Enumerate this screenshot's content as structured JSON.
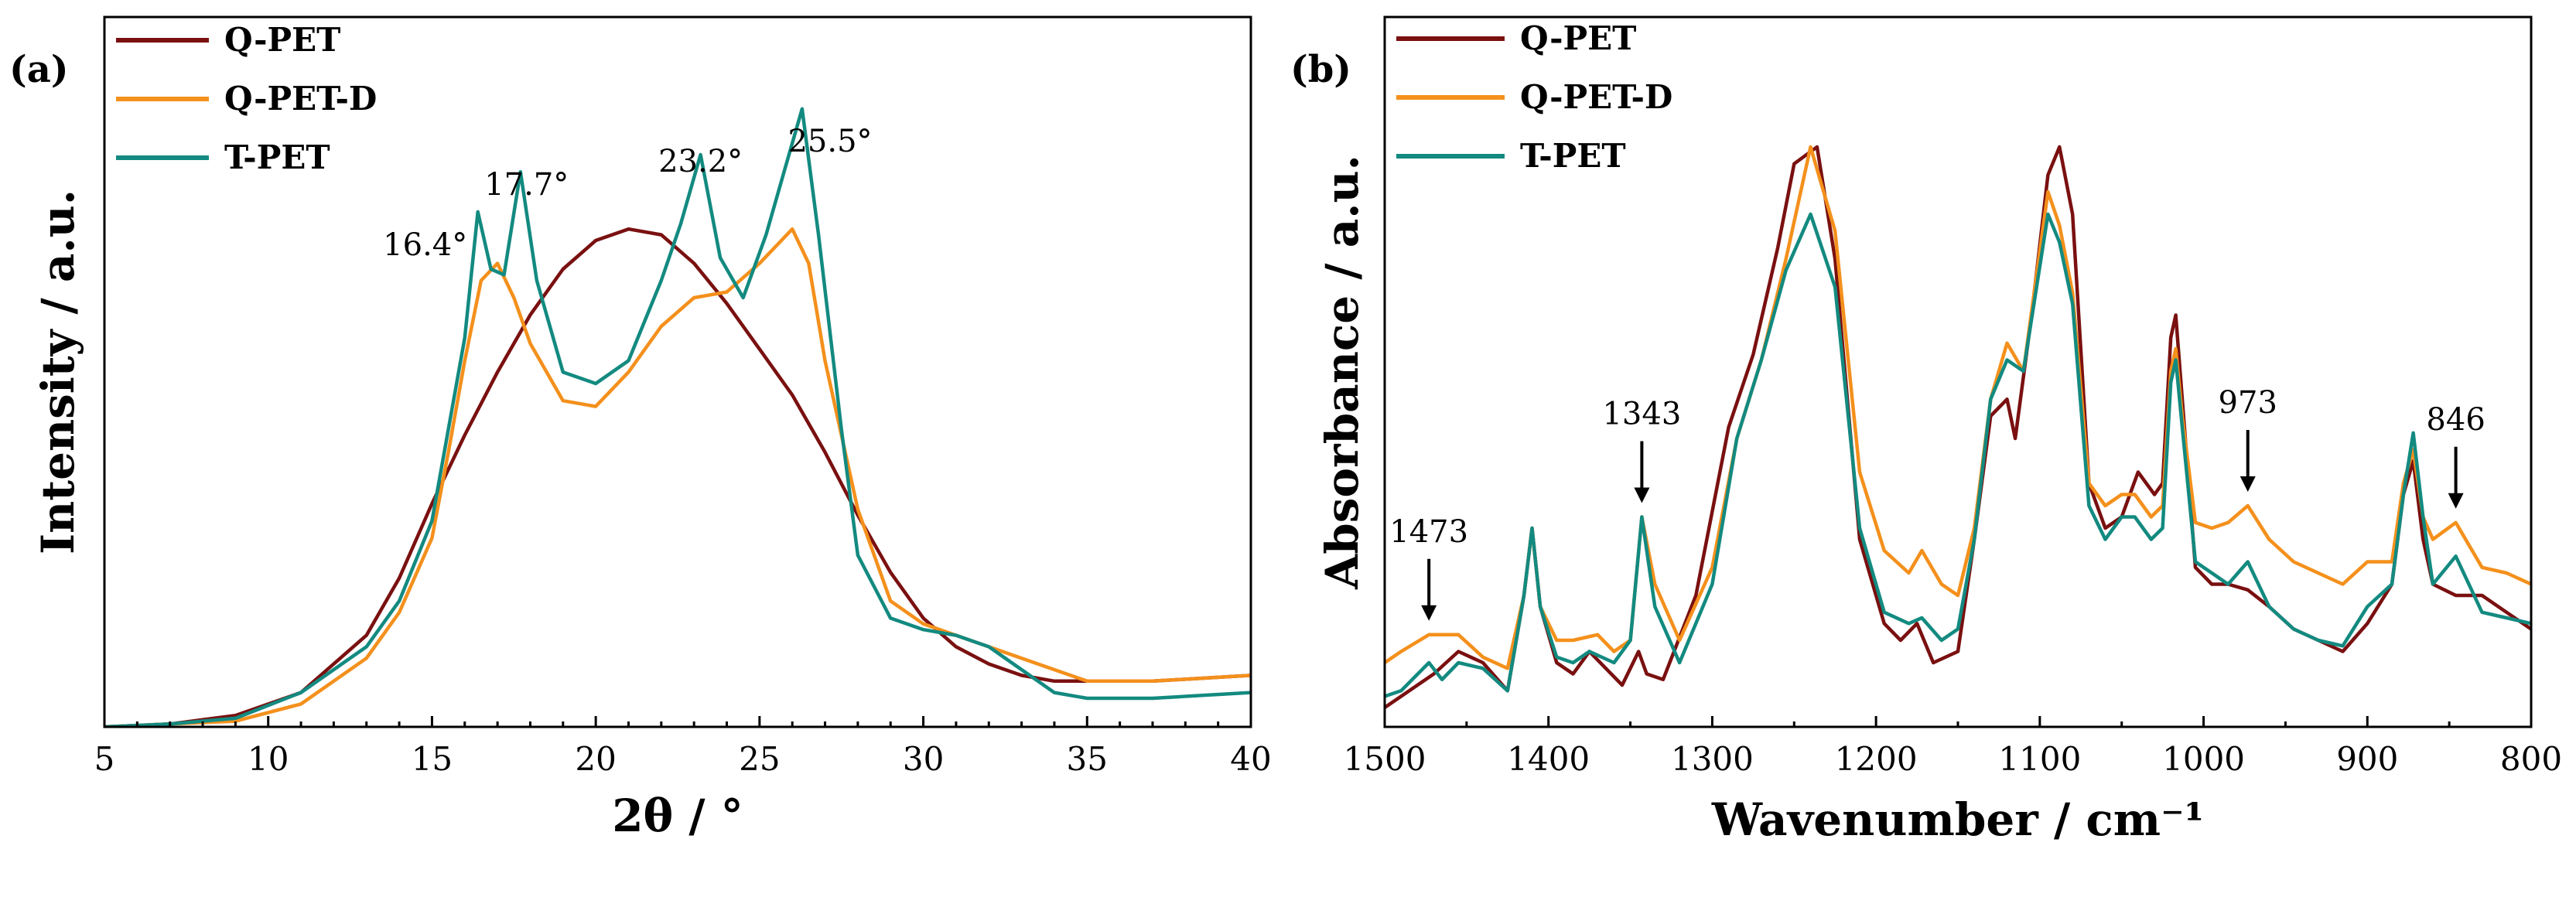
{
  "colors": {
    "Q-PET": "#7a1010",
    "Q-PET-D": "#f4901c",
    "T-PET": "#138a80"
  },
  "chart_data": [
    {
      "panel": "(a)",
      "type": "line",
      "xlabel": "2θ / °",
      "ylabel": "Intensity / a.u.",
      "xlim": [
        5,
        40
      ],
      "ylim": [
        0,
        100
      ],
      "xticks": [
        5,
        10,
        15,
        20,
        25,
        30,
        35,
        40
      ],
      "x_reversed": false,
      "legend": [
        "Q-PET",
        "Q-PET-D",
        "T-PET"
      ],
      "legend_position": "top-left",
      "series": [
        {
          "name": "Q-PET",
          "x": [
            5,
            7,
            9,
            11,
            13,
            14,
            15,
            16,
            17,
            18,
            19,
            20,
            21,
            22,
            23,
            24,
            25,
            26,
            27,
            28,
            29,
            30,
            31,
            32,
            33,
            34,
            35,
            37,
            40
          ],
          "y": [
            0,
            0.5,
            2,
            6,
            16,
            26,
            39,
            51,
            62,
            72,
            80,
            85,
            87,
            86,
            81,
            74,
            66,
            58,
            48,
            37,
            27,
            19,
            14,
            11,
            9,
            8,
            8,
            8,
            9
          ]
        },
        {
          "name": "Q-PET-D",
          "x": [
            5,
            7,
            9,
            11,
            13,
            14,
            15,
            15.5,
            16,
            16.5,
            17,
            17.5,
            18,
            19,
            20,
            21,
            22,
            23,
            24,
            25,
            26,
            26.5,
            27,
            28,
            29,
            30,
            31,
            32,
            33,
            34,
            35,
            37,
            40
          ],
          "y": [
            0,
            0.5,
            1,
            4,
            12,
            20,
            33,
            48,
            64,
            78,
            81,
            75,
            67,
            57,
            56,
            62,
            70,
            75,
            76,
            81,
            87,
            81,
            64,
            38,
            22,
            18,
            16,
            14,
            12,
            10,
            8,
            8,
            9
          ]
        },
        {
          "name": "T-PET",
          "x": [
            5,
            7,
            9,
            11,
            13,
            14,
            15,
            15.5,
            16,
            16.4,
            16.8,
            17.2,
            17.7,
            18.2,
            19,
            20,
            21,
            22,
            22.6,
            23.2,
            23.8,
            24.5,
            25.2,
            25.8,
            26.3,
            26.8,
            27.5,
            28,
            29,
            30,
            31,
            32,
            33,
            34,
            35,
            37,
            40
          ],
          "y": [
            0,
            0.5,
            1.5,
            6,
            14,
            22,
            36,
            52,
            68,
            90,
            80,
            79,
            97,
            78,
            62,
            60,
            64,
            78,
            88,
            100,
            82,
            75,
            86,
            98,
            108,
            86,
            52,
            30,
            19,
            17,
            16,
            14,
            10,
            6,
            5,
            5,
            6
          ]
        }
      ],
      "annotations": [
        {
          "text": "16.4°",
          "x": 16.4
        },
        {
          "text": "17.7°",
          "x": 17.7
        },
        {
          "text": "23.2°",
          "x": 23.2
        },
        {
          "text": "25.5°",
          "x": 25.5
        }
      ]
    },
    {
      "panel": "(b)",
      "type": "line",
      "xlabel": "Wavenumber / cm⁻¹",
      "ylabel": "Absorbance / a.u.",
      "xlim": [
        1500,
        800
      ],
      "ylim": [
        0,
        100
      ],
      "xticks": [
        1500,
        1400,
        1300,
        1200,
        1100,
        1000,
        900,
        800
      ],
      "x_reversed": true,
      "legend": [
        "Q-PET",
        "Q-PET-D",
        "T-PET"
      ],
      "legend_position": "top-left",
      "series": [
        {
          "name": "Q-PET",
          "x": [
            1500,
            1490,
            1470,
            1455,
            1440,
            1425,
            1415,
            1410,
            1405,
            1395,
            1385,
            1375,
            1365,
            1355,
            1345,
            1340,
            1330,
            1310,
            1290,
            1275,
            1260,
            1250,
            1236,
            1225,
            1210,
            1195,
            1185,
            1175,
            1165,
            1150,
            1140,
            1130,
            1120,
            1115,
            1105,
            1095,
            1088,
            1080,
            1070,
            1060,
            1050,
            1040,
            1030,
            1025,
            1020,
            1017,
            1013,
            1005,
            995,
            985,
            973,
            960,
            945,
            930,
            915,
            900,
            885,
            878,
            872,
            866,
            860,
            846,
            830,
            815,
            800
          ],
          "y": [
            0,
            2,
            6,
            10,
            8,
            3,
            20,
            32,
            18,
            8,
            6,
            10,
            7,
            4,
            10,
            6,
            5,
            20,
            50,
            63,
            82,
            97,
            100,
            80,
            30,
            15,
            12,
            15,
            8,
            10,
            30,
            52,
            55,
            48,
            70,
            95,
            100,
            88,
            40,
            32,
            34,
            42,
            38,
            40,
            66,
            70,
            55,
            25,
            22,
            22,
            21,
            18,
            14,
            12,
            10,
            15,
            22,
            38,
            44,
            30,
            22,
            20,
            20,
            17,
            14
          ]
        },
        {
          "name": "Q-PET-D",
          "x": [
            1500,
            1490,
            1473,
            1455,
            1440,
            1425,
            1415,
            1410,
            1405,
            1395,
            1385,
            1370,
            1360,
            1350,
            1343,
            1335,
            1320,
            1300,
            1285,
            1270,
            1255,
            1240,
            1225,
            1210,
            1195,
            1180,
            1172,
            1160,
            1150,
            1140,
            1130,
            1120,
            1110,
            1095,
            1088,
            1080,
            1070,
            1060,
            1050,
            1042,
            1032,
            1025,
            1020,
            1017,
            1013,
            1005,
            995,
            985,
            973,
            960,
            945,
            930,
            915,
            900,
            885,
            878,
            872,
            866,
            860,
            846,
            830,
            815,
            800
          ],
          "y": [
            8,
            10,
            13,
            13,
            9,
            7,
            20,
            32,
            18,
            12,
            12,
            13,
            10,
            12,
            34,
            22,
            12,
            25,
            48,
            62,
            80,
            100,
            85,
            42,
            28,
            24,
            28,
            22,
            20,
            32,
            55,
            65,
            60,
            92,
            86,
            74,
            40,
            36,
            38,
            38,
            34,
            36,
            60,
            64,
            52,
            33,
            32,
            33,
            36,
            30,
            26,
            24,
            22,
            26,
            26,
            40,
            46,
            34,
            30,
            33,
            25,
            24,
            22
          ]
        },
        {
          "name": "T-PET",
          "x": [
            1500,
            1490,
            1473,
            1465,
            1455,
            1440,
            1425,
            1415,
            1410,
            1405,
            1395,
            1385,
            1375,
            1360,
            1350,
            1343,
            1335,
            1320,
            1300,
            1285,
            1270,
            1255,
            1240,
            1225,
            1210,
            1195,
            1180,
            1172,
            1160,
            1150,
            1140,
            1130,
            1120,
            1110,
            1095,
            1088,
            1080,
            1070,
            1060,
            1050,
            1042,
            1032,
            1025,
            1020,
            1017,
            1013,
            1005,
            995,
            985,
            973,
            960,
            945,
            930,
            915,
            900,
            885,
            878,
            872,
            866,
            860,
            846,
            830,
            815,
            800
          ],
          "y": [
            2,
            3,
            8,
            5,
            8,
            7,
            3,
            20,
            32,
            18,
            9,
            8,
            10,
            8,
            12,
            34,
            18,
            8,
            22,
            48,
            62,
            78,
            88,
            75,
            32,
            17,
            15,
            16,
            12,
            14,
            30,
            55,
            62,
            60,
            88,
            83,
            72,
            36,
            30,
            34,
            34,
            30,
            32,
            58,
            62,
            50,
            26,
            24,
            22,
            26,
            18,
            14,
            12,
            11,
            18,
            22,
            38,
            49,
            34,
            22,
            27,
            17,
            16,
            15
          ]
        }
      ],
      "annotations": [
        {
          "text": "1473",
          "x": 1473
        },
        {
          "text": "1343",
          "x": 1343
        },
        {
          "text": "973",
          "x": 973
        },
        {
          "text": "846",
          "x": 846
        }
      ]
    }
  ]
}
